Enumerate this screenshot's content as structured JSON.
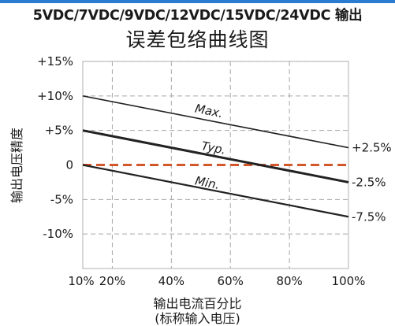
{
  "header": {
    "heading": "5VDC/7VDC/9VDC/12VDC/15VDC/24VDC 输出"
  },
  "chart_data": {
    "type": "line",
    "title": "误差包络曲线图",
    "xlabel": "输出电流百分比\n(标称输入电压)",
    "ylabel": "输出电压精度",
    "xlim": [
      10,
      100
    ],
    "ylim": [
      -15,
      15
    ],
    "x_ticks": [
      10,
      20,
      40,
      60,
      80,
      100
    ],
    "x_tick_labels": [
      "10%",
      "20%",
      "40%",
      "60%",
      "80%",
      "100%"
    ],
    "y_ticks": [
      15,
      10,
      5,
      0,
      -5,
      -10
    ],
    "y_tick_labels": [
      "+15%",
      "+10%",
      "+5%",
      "0",
      "-5%",
      "-10%"
    ],
    "grid": true,
    "series": [
      {
        "name": "Max.",
        "x": [
          10,
          100
        ],
        "y": [
          10,
          2.5
        ],
        "end_label": "+2.5%",
        "color": "#222222"
      },
      {
        "name": "Typ.",
        "x": [
          10,
          100
        ],
        "y": [
          5,
          -2.5
        ],
        "end_label": "-2.5%",
        "color": "#222222"
      },
      {
        "name": "Min.",
        "x": [
          10,
          100
        ],
        "y": [
          0,
          -7.5
        ],
        "end_label": "-7.5%",
        "color": "#222222"
      }
    ],
    "reference_line": {
      "y": 0,
      "color": "#d2572a",
      "style": "dashed"
    }
  }
}
